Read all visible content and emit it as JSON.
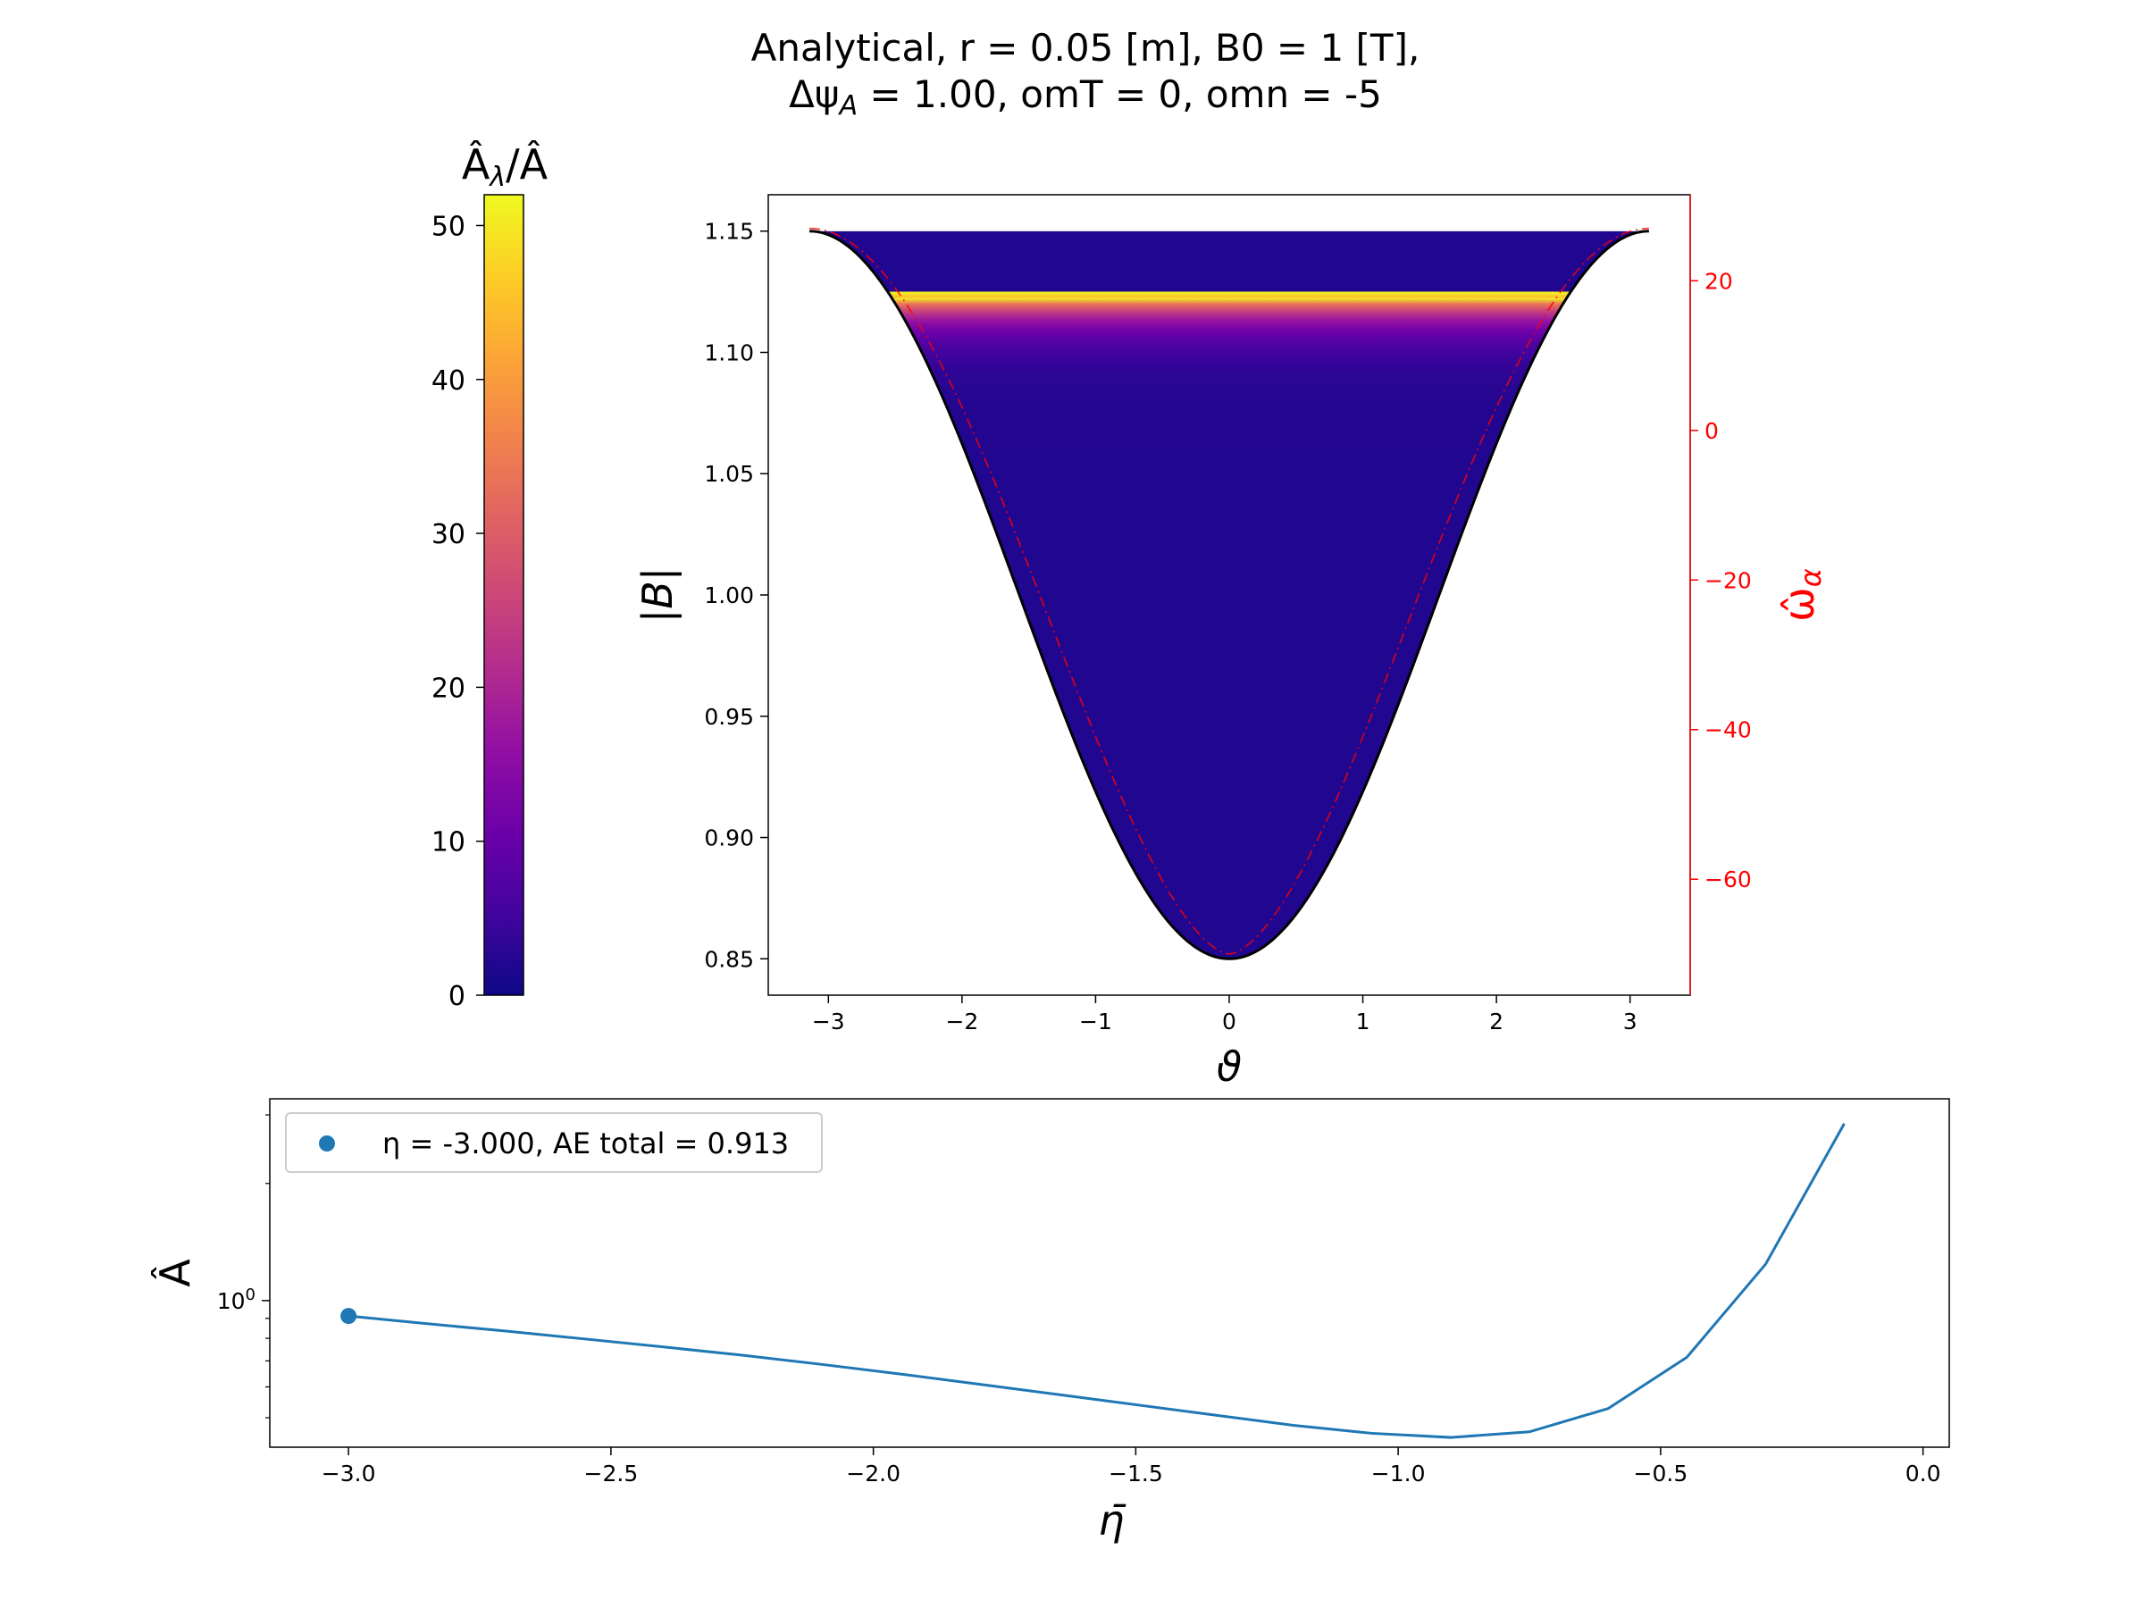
{
  "title": {
    "line1": "Analytical, r = 0.05 [m], B0 = 1 [T],",
    "line2": "Δψ_A = 1.00, omT = 0, omn = -5"
  },
  "colors": {
    "series": "#1f77b4",
    "omega": "#ff0000",
    "B_curve": "#000000"
  },
  "chart_data": [
    {
      "type": "colorbar",
      "label": "Â_λ/Â",
      "colormap": "plasma",
      "range": [
        0,
        52
      ],
      "ticks": [
        0,
        10,
        20,
        30,
        40,
        50
      ]
    },
    {
      "type": "heatmap",
      "xlabel": "ϑ",
      "ylabel": "|B|",
      "y2label": "ω̂_α",
      "xlim": [
        -3.45,
        3.45
      ],
      "ylim": [
        0.835,
        1.165
      ],
      "y2lim": [
        -75.5,
        31.5
      ],
      "xticks": [
        -3,
        -2,
        -1,
        0,
        1,
        2,
        3
      ],
      "yticks": [
        "0.85",
        "0.90",
        "0.95",
        "1.00",
        "1.05",
        "1.10",
        "1.15"
      ],
      "y2ticks": [
        -60,
        -40,
        -20,
        0,
        20
      ],
      "B_field": {
        "B0": 1.0,
        "epsilon": 0.15,
        "formula": "|B| = 1 - 0.15 cos(ϑ)",
        "theta_range": [
          -3.14159,
          3.14159
        ]
      },
      "omega_alpha": {
        "min": -70,
        "max": 27,
        "theta_range": [
          -3.14159,
          3.14159
        ]
      },
      "ratio_profile": {
        "peak_B": 1.124,
        "peak_value": 52,
        "top_B": 1.15,
        "top_value": 2,
        "base_value": 2
      }
    },
    {
      "type": "line",
      "xlabel": "η̄",
      "ylabel": "Â",
      "xlim": [
        -3.15,
        0.05
      ],
      "xticks": [
        "−3.0",
        "−2.5",
        "−2.0",
        "−1.5",
        "−1.0",
        "−0.5",
        "0.0"
      ],
      "yscale": "log",
      "ylim": [
        0.42,
        3.3
      ],
      "ytick_major": {
        "value": 1,
        "label": "10^0"
      },
      "yticks_minor": [
        0.5,
        0.6,
        0.7,
        0.8,
        0.9,
        2,
        3
      ],
      "series": [
        {
          "x": [
            -3.0,
            -2.85,
            -2.7,
            -2.55,
            -2.4,
            -2.25,
            -2.1,
            -1.95,
            -1.8,
            -1.65,
            -1.5,
            -1.35,
            -1.2,
            -1.05,
            -0.9,
            -0.75,
            -0.6,
            -0.45,
            -0.3,
            -0.15
          ],
          "y": [
            0.913,
            0.872,
            0.835,
            0.797,
            0.76,
            0.724,
            0.686,
            0.648,
            0.61,
            0.574,
            0.54,
            0.508,
            0.478,
            0.456,
            0.445,
            0.46,
            0.528,
            0.715,
            1.24,
            2.85
          ]
        }
      ],
      "marker": {
        "x": -3.0,
        "y": 0.913
      },
      "legend": {
        "text": "η = -3.000, AE total = 0.913",
        "position": "upper left"
      }
    }
  ]
}
